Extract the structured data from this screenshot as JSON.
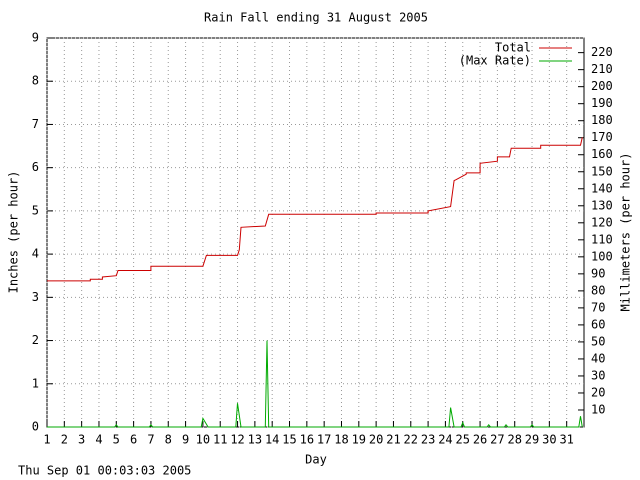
{
  "chart_data": {
    "type": "line",
    "title": "Rain Fall ending 31 August 2005",
    "x_label": "Day",
    "y_label": "Inches (per hour)",
    "y2_label": "Millimeters (per hour)",
    "footer": "Thu Sep 01 00:03:03 2005",
    "xlim": [
      1,
      32
    ],
    "xticks": [
      1,
      2,
      3,
      4,
      5,
      6,
      7,
      8,
      9,
      10,
      11,
      12,
      13,
      14,
      15,
      16,
      17,
      18,
      19,
      20,
      21,
      22,
      23,
      24,
      25,
      26,
      27,
      28,
      29,
      30,
      31
    ],
    "ylim": [
      0,
      9
    ],
    "yticks": [
      0,
      1,
      2,
      3,
      4,
      5,
      6,
      7,
      8,
      9
    ],
    "y2lim": [
      0,
      228.6
    ],
    "y2ticks": [
      10,
      20,
      30,
      40,
      50,
      60,
      70,
      80,
      90,
      100,
      110,
      120,
      130,
      140,
      150,
      160,
      170,
      180,
      190,
      200,
      210,
      220
    ],
    "grid": true,
    "legend": "top-right",
    "series": [
      {
        "name": "Total",
        "color": "#cc0000",
        "x": [
          1,
          3.5,
          3.5,
          4.2,
          4.2,
          5,
          5.1,
          7,
          7,
          10,
          10.2,
          12,
          12.1,
          12.2,
          13.6,
          13.8,
          20,
          20,
          23,
          23,
          24.3,
          24.5,
          24.6,
          25.2,
          25.2,
          26,
          26,
          27,
          27,
          27.7,
          27.8,
          29.5,
          29.5,
          31.8,
          31.9
        ],
        "values": [
          3.38,
          3.38,
          3.42,
          3.42,
          3.47,
          3.5,
          3.62,
          3.62,
          3.72,
          3.72,
          3.97,
          3.97,
          4.1,
          4.62,
          4.65,
          4.92,
          4.92,
          4.95,
          4.95,
          5.0,
          5.1,
          5.7,
          5.72,
          5.85,
          5.88,
          5.88,
          6.1,
          6.15,
          6.25,
          6.25,
          6.45,
          6.45,
          6.52,
          6.52,
          6.7
        ]
      },
      {
        "name": "(Max Rate)",
        "color": "#00aa00",
        "x": [
          1,
          4.9,
          5,
          5.1,
          6.9,
          7,
          7.1,
          9.9,
          10,
          10.3,
          11.9,
          12,
          12.2,
          13.6,
          13.7,
          13.8,
          24.2,
          24.3,
          24.5,
          24.9,
          25,
          25.1,
          26.4,
          26.5,
          26.6,
          27.4,
          27.5,
          27.6,
          28.9,
          29,
          29.1,
          31.7,
          31.8,
          31.9
        ],
        "values": [
          0,
          0,
          0.05,
          0,
          0,
          0.05,
          0,
          0,
          0.2,
          0,
          0,
          0.55,
          0,
          0,
          2.0,
          0,
          0,
          0.45,
          0,
          0,
          0.1,
          0,
          0,
          0.05,
          0,
          0,
          0.05,
          0,
          0,
          0.05,
          0,
          0,
          0.25,
          0
        ]
      }
    ]
  }
}
